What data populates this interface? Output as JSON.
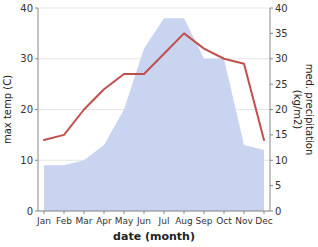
{
  "chart_data": {
    "type": "line",
    "xlabel": "date (month)",
    "ylabel": "max temp (C)",
    "y2label": "med. precipitation\n(kg/m2)",
    "categories": [
      "Jan",
      "Feb",
      "Mar",
      "Apr",
      "May",
      "Jun",
      "Jul",
      "Aug",
      "Sep",
      "Oct",
      "Nov",
      "Dec"
    ],
    "series": [
      {
        "type": "area",
        "axis": "y2",
        "color": "#c8d4f0",
        "values": [
          9,
          9,
          10,
          13,
          20,
          32,
          38,
          38,
          30,
          30,
          13,
          12
        ]
      },
      {
        "type": "line",
        "color": "#c0504d",
        "values": [
          14,
          15,
          20,
          24,
          27,
          27,
          31,
          35,
          32,
          30,
          29,
          14
        ]
      }
    ],
    "ylim": [
      0,
      40
    ],
    "yticks": [
      0,
      10,
      20,
      30,
      40
    ],
    "y2lim": [
      0,
      40
    ],
    "y2ticks": [
      0,
      5,
      10,
      15,
      20,
      25,
      30,
      35,
      40
    ],
    "grid": true
  }
}
